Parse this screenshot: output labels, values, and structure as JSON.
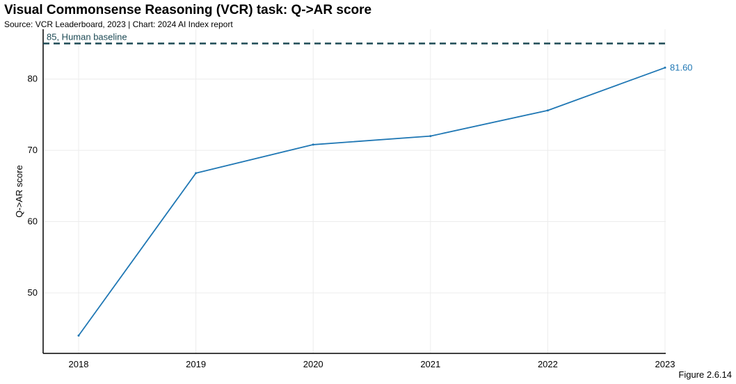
{
  "header": {
    "title": "Visual Commonsense Reasoning (VCR) task: Q->AR score",
    "subtitle": "Source: VCR Leaderboard, 2023 | Chart: 2024 AI Index report"
  },
  "footer": {
    "figure_label": "Figure 2.6.14"
  },
  "chart_data": {
    "type": "line",
    "title": "Visual Commonsense Reasoning (VCR) task: Q->AR score",
    "subtitle": "Source: VCR Leaderboard, 2023 | Chart: 2024 AI Index report",
    "xlabel": "",
    "ylabel": "Q->AR score",
    "x": [
      2018,
      2019,
      2020,
      2021,
      2022,
      2023
    ],
    "x_tick_labels": [
      "2018",
      "2019",
      "2020",
      "2021",
      "2022",
      "2023"
    ],
    "series": [
      {
        "values": [
          44,
          66.8,
          70.8,
          72,
          75.6,
          81.6
        ],
        "color": "#1f77b4",
        "end_label": "81.60"
      }
    ],
    "reference_line": {
      "value": 85,
      "label": "85, Human baseline",
      "color": "#1d4a55",
      "style": "dashed"
    },
    "ylim": [
      41.5,
      87
    ],
    "y_ticks": [
      50,
      60,
      70,
      80
    ],
    "y_tick_labels": [
      "50",
      "60",
      "70",
      "80"
    ],
    "grid": true,
    "legend": "none"
  }
}
